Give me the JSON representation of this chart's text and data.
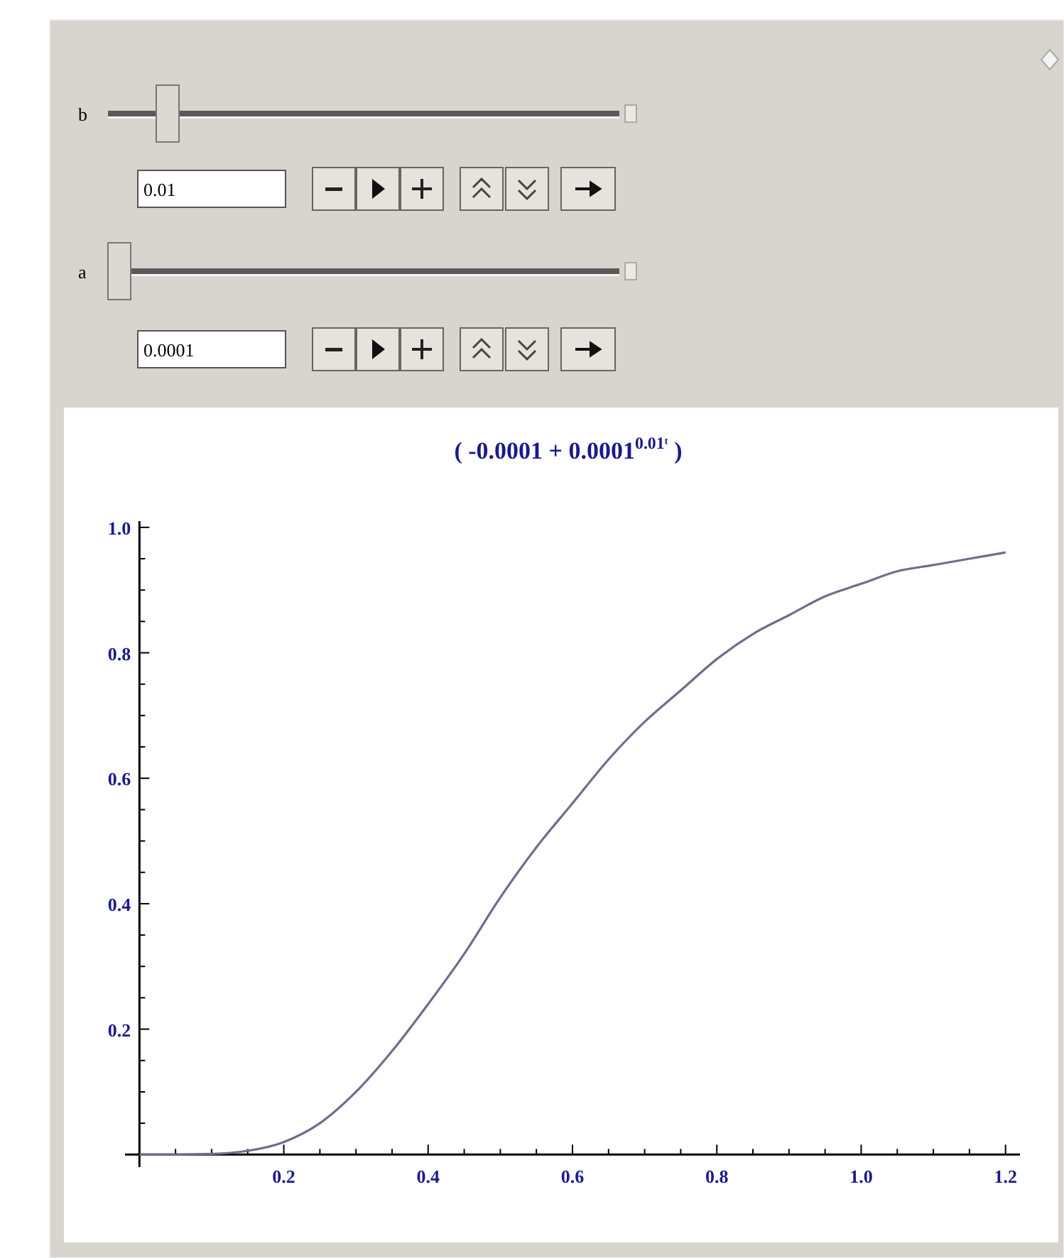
{
  "chart_data": {
    "type": "line",
    "title": "( -0.0001 + 0.0001$^{0.01ᵗ}$ )",
    "annotations": [
      "b",
      "0.01",
      "a",
      "0.0001"
    ],
    "x": [
      0,
      0.05,
      0.1,
      0.15,
      0.2,
      0.25,
      0.3,
      0.35,
      0.4,
      0.45,
      0.5,
      0.55,
      0.6,
      0.65,
      0.7,
      0.75,
      0.8,
      0.85,
      0.9,
      0.95,
      1.0,
      1.05,
      1.1,
      1.15,
      1.2
    ],
    "series": [
      {
        "color": "#6e6e8c",
        "values": [
          0,
          0,
          0.001,
          0.006,
          0.02,
          0.05,
          0.1,
          0.165,
          0.24,
          0.32,
          0.41,
          0.49,
          0.56,
          0.63,
          0.69,
          0.74,
          0.79,
          0.83,
          0.86,
          0.89,
          0.91,
          0.93,
          0.94,
          0.95,
          0.96
        ]
      }
    ],
    "xlim": [
      -0.02,
      1.22
    ],
    "ylim": [
      -0.02,
      1.01
    ],
    "xticks": [
      {
        "value": 0.05,
        "label": null
      },
      {
        "value": 0.1,
        "label": null
      },
      {
        "value": 0.15,
        "label": null
      },
      {
        "value": 0.2,
        "label": "0.2"
      },
      {
        "value": 0.25,
        "label": null
      },
      {
        "value": 0.3,
        "label": null
      },
      {
        "value": 0.35,
        "label": null
      },
      {
        "value": 0.4,
        "label": "0.4"
      },
      {
        "value": 0.45,
        "label": null
      },
      {
        "value": 0.5,
        "label": null
      },
      {
        "value": 0.55,
        "label": null
      },
      {
        "value": 0.6,
        "label": "0.6"
      },
      {
        "value": 0.65,
        "label": null
      },
      {
        "value": 0.7,
        "label": null
      },
      {
        "value": 0.75,
        "label": null
      },
      {
        "value": 0.8,
        "label": "0.8"
      },
      {
        "value": 0.85,
        "label": null
      },
      {
        "value": 0.9,
        "label": null
      },
      {
        "value": 0.95,
        "label": null
      },
      {
        "value": 1.0,
        "label": "1.0"
      },
      {
        "value": 1.05,
        "label": null
      },
      {
        "value": 1.1,
        "label": null
      },
      {
        "value": 1.15,
        "label": null
      },
      {
        "value": 1.2,
        "label": "1.2"
      }
    ],
    "yticks": [
      {
        "value": 0.05,
        "label": null
      },
      {
        "value": 0.1,
        "label": null
      },
      {
        "value": 0.15,
        "label": null
      },
      {
        "value": 0.2,
        "label": "0.2"
      },
      {
        "value": 0.25,
        "label": null
      },
      {
        "value": 0.3,
        "label": null
      },
      {
        "value": 0.35,
        "label": null
      },
      {
        "value": 0.4,
        "label": "0.4"
      },
      {
        "value": 0.45,
        "label": null
      },
      {
        "value": 0.5,
        "label": null
      },
      {
        "value": 0.55,
        "label": null
      },
      {
        "value": 0.6,
        "label": "0.6"
      },
      {
        "value": 0.65,
        "label": null
      },
      {
        "value": 0.7,
        "label": null
      },
      {
        "value": 0.75,
        "label": null
      },
      {
        "value": 0.8,
        "label": "0.8"
      },
      {
        "value": 0.85,
        "label": null
      },
      {
        "value": 0.9,
        "label": null
      },
      {
        "value": 0.95,
        "label": null
      },
      {
        "value": 1.0,
        "label": "1.0"
      }
    ],
    "grid": false,
    "marker": "none",
    "line_style": "solid"
  }
}
